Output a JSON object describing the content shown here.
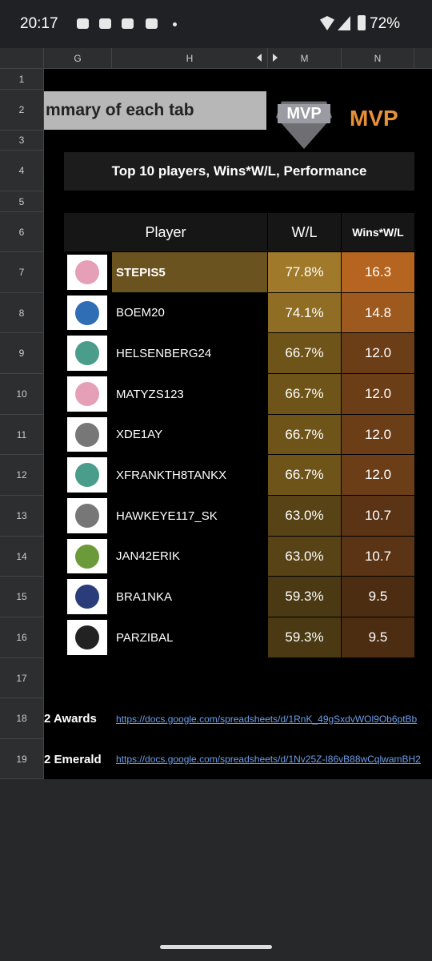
{
  "status_bar": {
    "time": "20:17",
    "battery": "72%"
  },
  "columns": [
    "G",
    "H",
    "M",
    "N"
  ],
  "row_numbers": [
    "1",
    "2",
    "3",
    "4",
    "5",
    "6",
    "7",
    "8",
    "9",
    "10",
    "11",
    "12",
    "13",
    "14",
    "15",
    "16",
    "17",
    "18",
    "19"
  ],
  "summary": {
    "title": "mmary of each tab",
    "mvp": "MVP",
    "logo": "MVP"
  },
  "section_title": "Top 10 players, Wins*W/L, Performance",
  "table": {
    "headers": [
      "Player",
      "W/L",
      "Wins*W/L"
    ],
    "rows": [
      [
        "STEPIS5",
        "77.8%",
        "16.3"
      ],
      [
        "BOEM20",
        "74.1%",
        "14.8"
      ],
      [
        "HELSENBERG24",
        "66.7%",
        "12.0"
      ],
      [
        "MATYZS123",
        "66.7%",
        "12.0"
      ],
      [
        "XDE1AY",
        "66.7%",
        "12.0"
      ],
      [
        "XFRANKTH8TANKX",
        "66.7%",
        "12.0"
      ],
      [
        "HAWKEYE117_SK",
        "63.0%",
        "10.7"
      ],
      [
        "JAN42ERIK",
        "63.0%",
        "10.7"
      ],
      [
        "BRA1NKA",
        "59.3%",
        "9.5"
      ],
      [
        "PARZIBAL",
        "59.3%",
        "9.5"
      ]
    ]
  },
  "links": [
    {
      "label": "2 Awards",
      "url": "https://docs.google.com/spreadsheets/d/1RnK_49gSxdvWOl9Ob6ptBb"
    },
    {
      "label": "2 Emerald",
      "url": "https://docs.google.com/spreadsheets/d/1Nv25Z-I86vB88wCqlwamBH2"
    }
  ]
}
